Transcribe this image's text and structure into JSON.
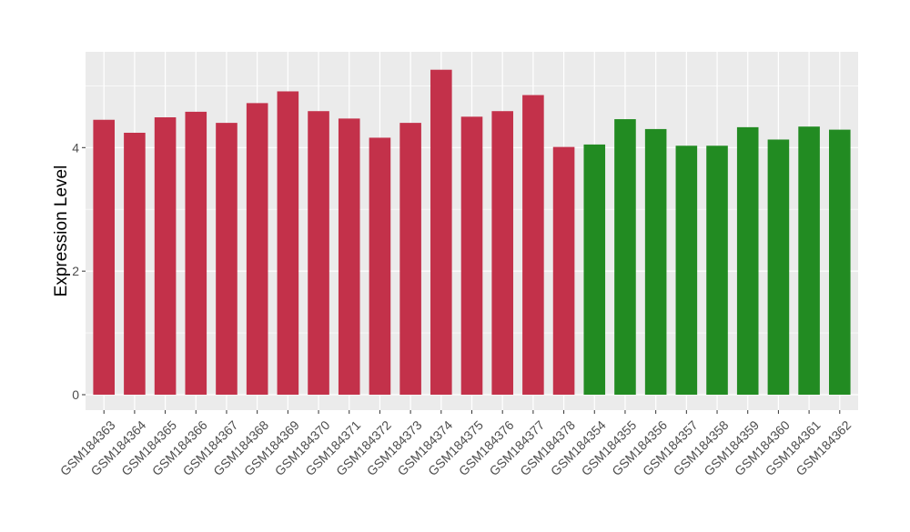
{
  "chart_data": {
    "type": "bar",
    "title": "",
    "xlabel": "",
    "ylabel": "Expression Level",
    "ylim": [
      -0.25,
      5.55
    ],
    "yticks": [
      0,
      2,
      4
    ],
    "grid": true,
    "legend": "none",
    "categories": [
      "GSM184363",
      "GSM184364",
      "GSM184365",
      "GSM184366",
      "GSM184367",
      "GSM184368",
      "GSM184369",
      "GSM184370",
      "GSM184371",
      "GSM184372",
      "GSM184373",
      "GSM184374",
      "GSM184375",
      "GSM184376",
      "GSM184377",
      "GSM184378",
      "GSM184354",
      "GSM184355",
      "GSM184356",
      "GSM184357",
      "GSM184358",
      "GSM184359",
      "GSM184360",
      "GSM184361",
      "GSM184362"
    ],
    "values": [
      4.45,
      4.24,
      4.49,
      4.58,
      4.4,
      4.72,
      4.91,
      4.59,
      4.47,
      4.16,
      4.4,
      5.26,
      4.5,
      4.59,
      4.85,
      4.01,
      4.05,
      4.46,
      4.3,
      4.03,
      4.03,
      4.33,
      4.13,
      4.34,
      4.29
    ],
    "colors": [
      "#C3314A",
      "#C3314A",
      "#C3314A",
      "#C3314A",
      "#C3314A",
      "#C3314A",
      "#C3314A",
      "#C3314A",
      "#C3314A",
      "#C3314A",
      "#C3314A",
      "#C3314A",
      "#C3314A",
      "#C3314A",
      "#C3314A",
      "#C3314A",
      "#228B22",
      "#228B22",
      "#228B22",
      "#228B22",
      "#228B22",
      "#228B22",
      "#228B22",
      "#228B22",
      "#228B22"
    ],
    "panel_background": "#EBEBEB",
    "grid_color": "#FFFFFF"
  }
}
